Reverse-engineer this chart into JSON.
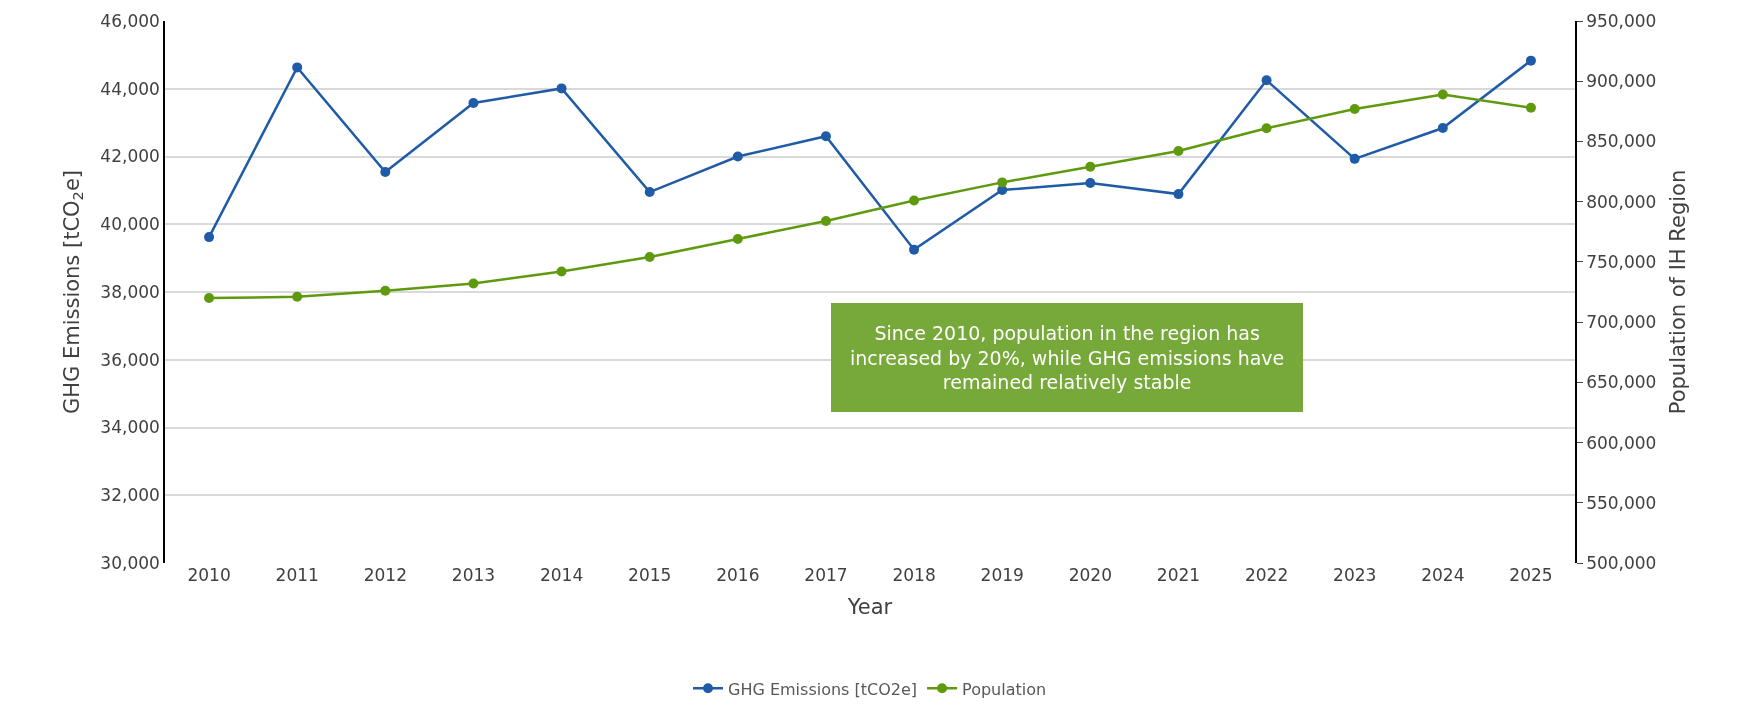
{
  "chart_data": {
    "type": "line",
    "xlabel": "Year",
    "ylabel": "GHG Emissions [tCO$_{2}$e]",
    "y2label": "Population of IH Region",
    "categories": [
      "2010",
      "2011",
      "2012",
      "2013",
      "2014",
      "2015",
      "2016",
      "2017",
      "2018",
      "2019",
      "2020",
      "2021",
      "2022",
      "2023",
      "2024",
      "2025"
    ],
    "series": [
      {
        "name": "GHG Emissions [tCO2e]",
        "color": "#1f5ba6",
        "values": [
          39620,
          44630,
          41540,
          43580,
          44010,
          40950,
          42000,
          42600,
          39250,
          41010,
          41220,
          40890,
          44250,
          41930,
          42840,
          44830
        ]
      },
      {
        "name": "Population",
        "color": "#5f9a0e",
        "axis": "y2",
        "values": [
          720000,
          721000,
          726000,
          732000,
          742000,
          754000,
          769000,
          784000,
          801000,
          816000,
          829000,
          842000,
          861000,
          877000,
          889000,
          878000
        ]
      }
    ],
    "ylim": [
      30000,
      46000
    ],
    "yticks": [
      {
        "value": 30000,
        "label": "30,000"
      },
      {
        "value": 32000,
        "label": "32,000"
      },
      {
        "value": 34000,
        "label": "34,000"
      },
      {
        "value": 36000,
        "label": "36,000"
      },
      {
        "value": 38000,
        "label": "38,000"
      },
      {
        "value": 40000,
        "label": "40,000"
      },
      {
        "value": 42000,
        "label": "42,000"
      },
      {
        "value": 44000,
        "label": "44,000"
      },
      {
        "value": 46000,
        "label": "46,000"
      }
    ],
    "y2lim": [
      500000,
      950000
    ],
    "y2ticks": [
      {
        "value": 500000,
        "label": "500,000"
      },
      {
        "value": 550000,
        "label": "550,000"
      },
      {
        "value": 600000,
        "label": "600,000"
      },
      {
        "value": 650000,
        "label": "650,000"
      },
      {
        "value": 700000,
        "label": "700,000"
      },
      {
        "value": 750000,
        "label": "750,000"
      },
      {
        "value": 800000,
        "label": "800,000"
      },
      {
        "value": 850000,
        "label": "850,000"
      },
      {
        "value": 900000,
        "label": "900,000"
      },
      {
        "value": 950000,
        "label": "950,000"
      }
    ],
    "annotations": [
      "Since 2010, population in the region has\nincreased by 20%, while GHG emissions have\nremained relatively stable"
    ],
    "grid": "y",
    "legend": "bottom",
    "marker": "circle",
    "line_style": "solid"
  }
}
